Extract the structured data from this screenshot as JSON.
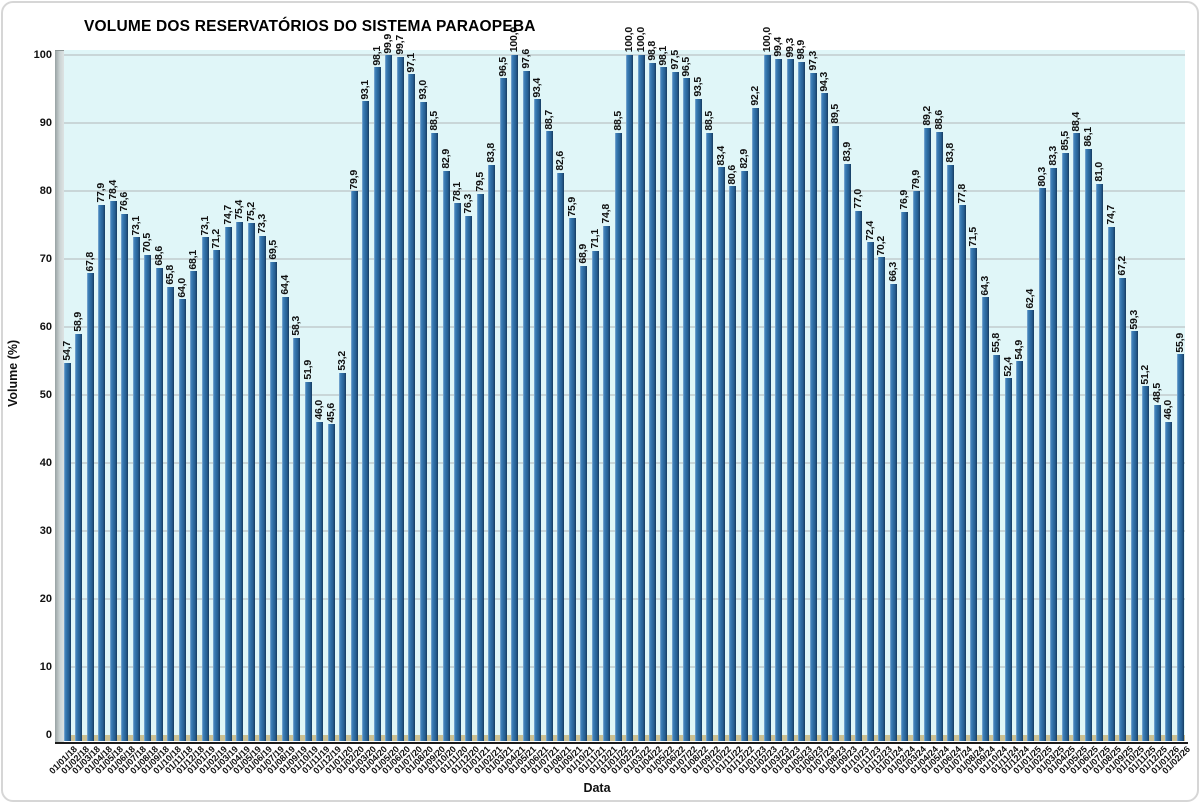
{
  "window": {
    "background": "#ffffff",
    "border_color": "#d6d6d6"
  },
  "chart_data": {
    "type": "bar",
    "title": "VOLUME DOS RESERVATÓRIOS DO SISTEMA PARAOPEBA",
    "xlabel": "Data",
    "ylabel": "Volume (%)",
    "ylim": [
      0,
      100
    ],
    "ytick_step": 10,
    "yticks": [
      0,
      10,
      20,
      30,
      40,
      50,
      60,
      70,
      80,
      90,
      100
    ],
    "grid": true,
    "legend": false,
    "decimal_separator": ",",
    "data_labels": true,
    "bar_color": "#2E6DA4",
    "bar_edge_color": "#1F4E79",
    "plot_background": "#E0F6F8",
    "floor_color": "#CBC193",
    "wall_color": "#B8C2C3",
    "categories": [
      "01/01/18",
      "01/02/18",
      "01/03/18",
      "01/04/18",
      "01/05/18",
      "01/06/18",
      "01/07/18",
      "01/08/18",
      "01/09/18",
      "01/10/18",
      "01/11/18",
      "01/12/18",
      "01/01/19",
      "01/02/19",
      "01/03/19",
      "01/04/19",
      "01/05/19",
      "01/06/19",
      "01/07/19",
      "01/08/19",
      "01/09/19",
      "01/10/19",
      "01/11/19",
      "01/12/19",
      "01/01/20",
      "01/02/20",
      "01/03/20",
      "01/04/20",
      "01/05/20",
      "01/06/20",
      "01/07/20",
      "01/08/20",
      "01/09/20",
      "01/10/20",
      "01/11/20",
      "01/12/20",
      "01/01/21",
      "01/02/21",
      "01/03/21",
      "01/04/21",
      "01/05/21",
      "01/06/21",
      "01/07/21",
      "01/08/21",
      "01/09/21",
      "01/10/21",
      "01/11/21",
      "01/12/21",
      "01/01/22",
      "01/02/22",
      "01/03/22",
      "01/04/22",
      "01/05/22",
      "01/06/22",
      "01/07/22",
      "01/08/22",
      "01/09/22",
      "01/10/22",
      "01/11/22",
      "01/12/22",
      "01/01/23",
      "01/02/23",
      "01/03/23",
      "01/04/23",
      "01/05/23",
      "01/06/23",
      "01/07/23",
      "01/08/23",
      "01/09/23",
      "01/10/23",
      "01/11/23",
      "01/12/23",
      "01/01/24",
      "01/02/24",
      "01/03/24",
      "01/04/24",
      "01/05/24",
      "01/06/24",
      "01/07/24",
      "01/08/24",
      "01/09/24",
      "01/10/24",
      "01/11/24",
      "01/12/24",
      "01/01/25",
      "01/02/25",
      "01/03/25",
      "01/04/25",
      "01/05/25",
      "01/06/25",
      "01/07/25",
      "01/08/25",
      "01/09/25",
      "01/10/25",
      "01/11/25",
      "01/12/25",
      "01/01/26",
      "01/02/26"
    ],
    "values": [
      54.7,
      58.9,
      67.8,
      77.9,
      78.4,
      76.6,
      73.1,
      70.5,
      68.6,
      65.8,
      64.0,
      68.1,
      73.1,
      71.2,
      74.7,
      75.4,
      75.2,
      73.3,
      69.5,
      64.4,
      58.3,
      51.9,
      46.0,
      45.6,
      53.2,
      79.9,
      93.1,
      98.1,
      99.9,
      99.7,
      97.1,
      93.0,
      88.5,
      82.9,
      78.1,
      76.3,
      79.5,
      83.8,
      96.5,
      100.0,
      97.6,
      93.4,
      88.7,
      82.6,
      75.9,
      68.9,
      71.1,
      74.8,
      88.5,
      100.0,
      100.0,
      98.8,
      98.1,
      97.5,
      96.5,
      93.5,
      88.5,
      83.4,
      80.6,
      82.9,
      92.2,
      100.0,
      99.4,
      99.3,
      98.9,
      97.3,
      94.3,
      89.5,
      83.9,
      77.0,
      72.4,
      70.2,
      66.3,
      76.9,
      79.9,
      89.2,
      88.6,
      83.8,
      77.8,
      71.5,
      64.3,
      55.8,
      52.4,
      54.9,
      62.4,
      80.3,
      83.3,
      85.5,
      88.4,
      86.1,
      81.0,
      74.7,
      67.2,
      59.3,
      51.2,
      48.5,
      46.0,
      55.9
    ]
  }
}
